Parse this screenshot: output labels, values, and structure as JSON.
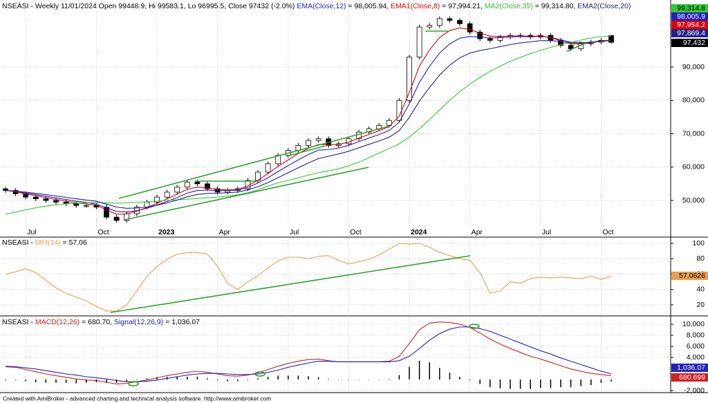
{
  "chart_data": [
    {
      "type": "candlestick",
      "title_parts": [
        {
          "text": "NSEASI - Weekly 11/01/2024 Open 99448.9, Hi 99583.1, Lo 96995.5, Close 97432 (-2.0%) ",
          "color": "#000000"
        },
        {
          "text": "EMA(Close,12)",
          "color": "#2020c0"
        },
        {
          "text": " = 98,005.94, ",
          "color": "#000000"
        },
        {
          "text": "EMA1(Close,8)",
          "color": "#e00000"
        },
        {
          "text": " = 97,994.21, ",
          "color": "#000000"
        },
        {
          "text": "MA2(Close,35)",
          "color": "#33bb33"
        },
        {
          "text": " = 99,314.80, ",
          "color": "#000000"
        },
        {
          "text": "EMA2(Close,20)",
          "color": "#20208a"
        }
      ],
      "categories": [
        null,
        null,
        "Jul",
        null,
        null,
        null,
        null,
        null,
        null,
        "Oct",
        null,
        null,
        null,
        null,
        null,
        "2023",
        null,
        null,
        null,
        null,
        null,
        "Apr",
        null,
        null,
        null,
        null,
        null,
        null,
        "Jul",
        null,
        null,
        null,
        null,
        null,
        "Oct",
        null,
        null,
        null,
        null,
        null,
        "2024",
        null,
        null,
        null,
        null,
        null,
        "Apr",
        null,
        null,
        null,
        null,
        null,
        null,
        "Jul",
        null,
        null,
        null,
        null,
        null,
        "Oct",
        null
      ],
      "open": [
        53500,
        53000,
        52000,
        51000,
        50500,
        50000,
        49500,
        49000,
        48500,
        48500,
        48000,
        45000,
        44000,
        46000,
        48000,
        49500,
        51000,
        52500,
        54000,
        55500,
        55000,
        53500,
        52500,
        53000,
        53500,
        56000,
        58500,
        61000,
        63500,
        65000,
        66500,
        68000,
        68500,
        66500,
        67000,
        68500,
        70500,
        71500,
        72500,
        74000,
        80000,
        93000,
        102000,
        102500,
        104500,
        104000,
        103000,
        100500,
        98500,
        98000,
        99000,
        99500,
        99500,
        99000,
        99500,
        98000,
        96500,
        95500,
        97000,
        97500,
        99448.9
      ],
      "high": [
        54200,
        53700,
        52700,
        51700,
        51200,
        50700,
        50200,
        49700,
        49200,
        49200,
        48700,
        45700,
        46700,
        48700,
        50200,
        51700,
        53200,
        54700,
        56200,
        56200,
        55700,
        54200,
        53700,
        54200,
        56700,
        59200,
        61700,
        64200,
        65700,
        67200,
        68700,
        69200,
        69200,
        67700,
        69200,
        71200,
        72200,
        73200,
        74700,
        80700,
        93700,
        102700,
        103200,
        105200,
        105200,
        104700,
        103700,
        101200,
        99200,
        99700,
        100200,
        100200,
        100200,
        100200,
        100200,
        98700,
        97200,
        97700,
        98200,
        98700,
        99583.1
      ],
      "low": [
        52300,
        51300,
        50300,
        49800,
        49300,
        48800,
        48300,
        47800,
        47800,
        47300,
        44300,
        43300,
        43300,
        45300,
        47300,
        48800,
        50300,
        51800,
        53300,
        54300,
        52800,
        51800,
        51800,
        52300,
        52800,
        55300,
        57800,
        60300,
        62800,
        64300,
        65800,
        67300,
        65800,
        65800,
        66300,
        67800,
        69800,
        70800,
        71800,
        73300,
        79300,
        92300,
        101300,
        101800,
        103300,
        102300,
        99800,
        97800,
        97300,
        97300,
        98300,
        98800,
        98300,
        98300,
        97300,
        95800,
        94800,
        94800,
        96300,
        96800,
        96995.5
      ],
      "close": [
        53000,
        52000,
        51000,
        50500,
        50000,
        49500,
        49000,
        48500,
        48500,
        48000,
        45000,
        44000,
        46000,
        48000,
        49500,
        51000,
        52500,
        54000,
        55500,
        55000,
        53500,
        52500,
        53000,
        53500,
        56000,
        58500,
        61000,
        63500,
        65000,
        66500,
        68000,
        68500,
        66500,
        67000,
        68500,
        70500,
        71500,
        72500,
        74000,
        80000,
        93000,
        102000,
        102500,
        104500,
        104000,
        103000,
        100500,
        98500,
        98000,
        99000,
        99500,
        99500,
        99000,
        99500,
        98000,
        96500,
        95500,
        97000,
        97500,
        98000,
        97432
      ],
      "close_label": "97,432",
      "up_color": "#ffffff",
      "down_color": "#000000",
      "series": [
        {
          "color": "#2020c0",
          "last_label": "98,005.9",
          "values": [
            53000,
            52720,
            52240,
            51750,
            51260,
            50770,
            50270,
            49770,
            49410,
            48880,
            47790,
            46730,
            46530,
            46940,
            47660,
            48600,
            49690,
            50900,
            52190,
            52980,
            53130,
            52950,
            52960,
            53110,
            53920,
            55200,
            56820,
            58690,
            60460,
            62150,
            63790,
            65110,
            65240,
            65730,
            66510,
            67630,
            68720,
            69780,
            70960,
            73490,
            78950,
            85400,
            90190,
            94200,
            96940,
            98640,
            99160,
            99000,
            98720,
            98800,
            98990,
            99130,
            99090,
            99200,
            98870,
            98210,
            97450,
            97320,
            97370,
            97950,
            98005.9
          ]
        },
        {
          "color": "#e00000",
          "last_label": "97,994.2",
          "values": [
            53000,
            52600,
            51960,
            51380,
            50830,
            50300,
            49780,
            49270,
            48960,
            48580,
            47150,
            45890,
            45930,
            46760,
            47860,
            49110,
            50470,
            51880,
            53330,
            54000,
            53800,
            53280,
            53170,
            53300,
            54380,
            56030,
            58020,
            60210,
            62130,
            64080,
            65650,
            66790,
            66670,
            66800,
            67480,
            68690,
            69810,
            70890,
            72130,
            75280,
            82370,
            90220,
            95130,
            98880,
            100930,
            101760,
            101260,
            100150,
            99290,
            99170,
            99300,
            99380,
            99230,
            99340,
            98800,
            97880,
            96930,
            96960,
            97180,
            97900,
            97994.2
          ]
        },
        {
          "color": "#33cc33",
          "last_label": "99,314.8",
          "values": [
            45900,
            46500,
            47200,
            47800,
            48300,
            48700,
            49000,
            49200,
            49300,
            49400,
            49300,
            49200,
            49300,
            49400,
            49600,
            49800,
            50000,
            50200,
            50400,
            50600,
            50800,
            51000,
            51300,
            51700,
            52300,
            53200,
            54300,
            55300,
            56000,
            56800,
            57600,
            58300,
            58900,
            59500,
            60400,
            61500,
            62800,
            64200,
            65600,
            67000,
            69000,
            71500,
            74300,
            77200,
            80000,
            82600,
            84900,
            86900,
            88700,
            90300,
            91700,
            92900,
            94000,
            95000,
            95900,
            96700,
            97400,
            98100,
            98700,
            99100,
            99314.8
          ]
        },
        {
          "color": "#20208a",
          "last_label": "97,869.4",
          "values": [
            53000,
            52820,
            52490,
            52130,
            51750,
            51350,
            50930,
            50490,
            50130,
            49750,
            48900,
            48020,
            47660,
            47720,
            48040,
            48570,
            49280,
            50130,
            51100,
            51800,
            52110,
            52180,
            52320,
            52530,
            53160,
            54120,
            55360,
            56830,
            58300,
            59780,
            61260,
            62560,
            63270,
            63940,
            64760,
            65790,
            66820,
            67840,
            68950,
            70940,
            74910,
            79790,
            83880,
            87590,
            90540,
            92780,
            94170,
            94950,
            95500,
            96130,
            96740,
            97240,
            97560,
            97910,
            97930,
            97670,
            97280,
            97230,
            97280,
            97800,
            97869.4
          ]
        }
      ],
      "ylim": [
        42330,
        109070
      ],
      "yticks": [
        {
          "value": 50000,
          "label": "50,000"
        },
        {
          "value": 60000,
          "label": "60,000"
        },
        {
          "value": 70000,
          "label": "70,000"
        },
        {
          "value": 80000,
          "label": "80,000"
        },
        {
          "value": 90000,
          "label": "90,000"
        }
      ],
      "grid": true
    },
    {
      "type": "line",
      "title_parts": [
        {
          "text": "NSEASI - ",
          "color": "#000000"
        },
        {
          "text": "MFI(14)",
          "color": "#e8a050"
        },
        {
          "text": " = 57.06",
          "color": "#000000"
        }
      ],
      "series": [
        {
          "color": "#e8a050",
          "last_label": "57.0626",
          "values": [
            60,
            63,
            67,
            62,
            52,
            42,
            35,
            30,
            25,
            18,
            12,
            12,
            20,
            38,
            57,
            70,
            79,
            86,
            88,
            88,
            86,
            70,
            48,
            40,
            50,
            58,
            68,
            77,
            82,
            82,
            80,
            83,
            84,
            78,
            73,
            76,
            79,
            85,
            92,
            100,
            99,
            100,
            95,
            88,
            84,
            80,
            78,
            62,
            35,
            38,
            50,
            48,
            54,
            56,
            55,
            56,
            55,
            54,
            57,
            53,
            57.0626
          ]
        }
      ],
      "ylim": [
        7.4,
        106.3
      ],
      "yticks": [
        20,
        40,
        60,
        80,
        100
      ],
      "grid": true
    },
    {
      "type": "line",
      "title_parts": [
        {
          "text": "NSEASI - ",
          "color": "#000000"
        },
        {
          "text": "MACD(12,26)",
          "color": "#d02020"
        },
        {
          "text": " = 680.70, ",
          "color": "#000000"
        },
        {
          "text": "Signal(12,26,9)",
          "color": "#2020c0"
        },
        {
          "text": " = 1,036.07",
          "color": "#000000"
        }
      ],
      "series": [
        {
          "color": "#d02020",
          "last_label": "680.699",
          "values": [
            2300,
            2200,
            1800,
            1400,
            1000,
            700,
            400,
            100,
            -100,
            -200,
            -500,
            -800,
            -700,
            -400,
            -100,
            300,
            700,
            1000,
            1300,
            1500,
            1300,
            1000,
            700,
            600,
            800,
            1200,
            1800,
            2400,
            2900,
            3300,
            3600,
            3700,
            3400,
            3200,
            3200,
            3200,
            3200,
            3200,
            3300,
            4200,
            6500,
            9000,
            10200,
            10400,
            10300,
            10000,
            9400,
            8400,
            7300,
            6400,
            5600,
            4900,
            4200,
            3700,
            3100,
            2500,
            1900,
            1500,
            1100,
            900,
            680.699
          ]
        },
        {
          "color": "#2020c0",
          "last_label": "1,036.07",
          "values": [
            2400,
            2300,
            2100,
            1900,
            1600,
            1300,
            1000,
            800,
            500,
            300,
            100,
            -200,
            -400,
            -400,
            -300,
            -100,
            200,
            500,
            800,
            1000,
            1100,
            1100,
            1000,
            900,
            900,
            1000,
            1300,
            1700,
            2200,
            2600,
            3000,
            3300,
            3300,
            3200,
            3200,
            3200,
            3200,
            3200,
            3200,
            3400,
            4200,
            5600,
            7100,
            8300,
            9100,
            9500,
            9500,
            9200,
            8700,
            8000,
            7300,
            6600,
            5900,
            5200,
            4600,
            3900,
            3300,
            2700,
            2100,
            1500,
            1036.07
          ]
        },
        {
          "color": "#000000",
          "kind": "bar",
          "values": [
            -100,
            -100,
            -300,
            -500,
            -600,
            -600,
            -600,
            -700,
            -600,
            -500,
            -600,
            -600,
            -300,
            0,
            200,
            400,
            500,
            500,
            500,
            500,
            200,
            -100,
            -300,
            -300,
            -100,
            200,
            500,
            700,
            700,
            700,
            600,
            400,
            100,
            0,
            0,
            0,
            0,
            0,
            100,
            800,
            2300,
            3400,
            3100,
            2100,
            1200,
            500,
            -100,
            -800,
            -1400,
            -1600,
            -1700,
            -1700,
            -1700,
            -1500,
            -1500,
            -1400,
            -1400,
            -1200,
            -1000,
            -600,
            -355
          ]
        }
      ],
      "ylim": [
        -2125,
        11125
      ],
      "yticks": [
        {
          "value": 10000,
          "label": "10,000"
        },
        {
          "value": 8000,
          "label": "8,000"
        },
        {
          "value": 6000,
          "label": "6,000"
        },
        {
          "value": 4000,
          "label": "4,000"
        },
        {
          "value": -2000,
          "label": "-2,000"
        }
      ],
      "grid": true
    }
  ],
  "footer": "Created with AmiBroker - advanced charting and technical analysis software. http://www.amibroker.com"
}
